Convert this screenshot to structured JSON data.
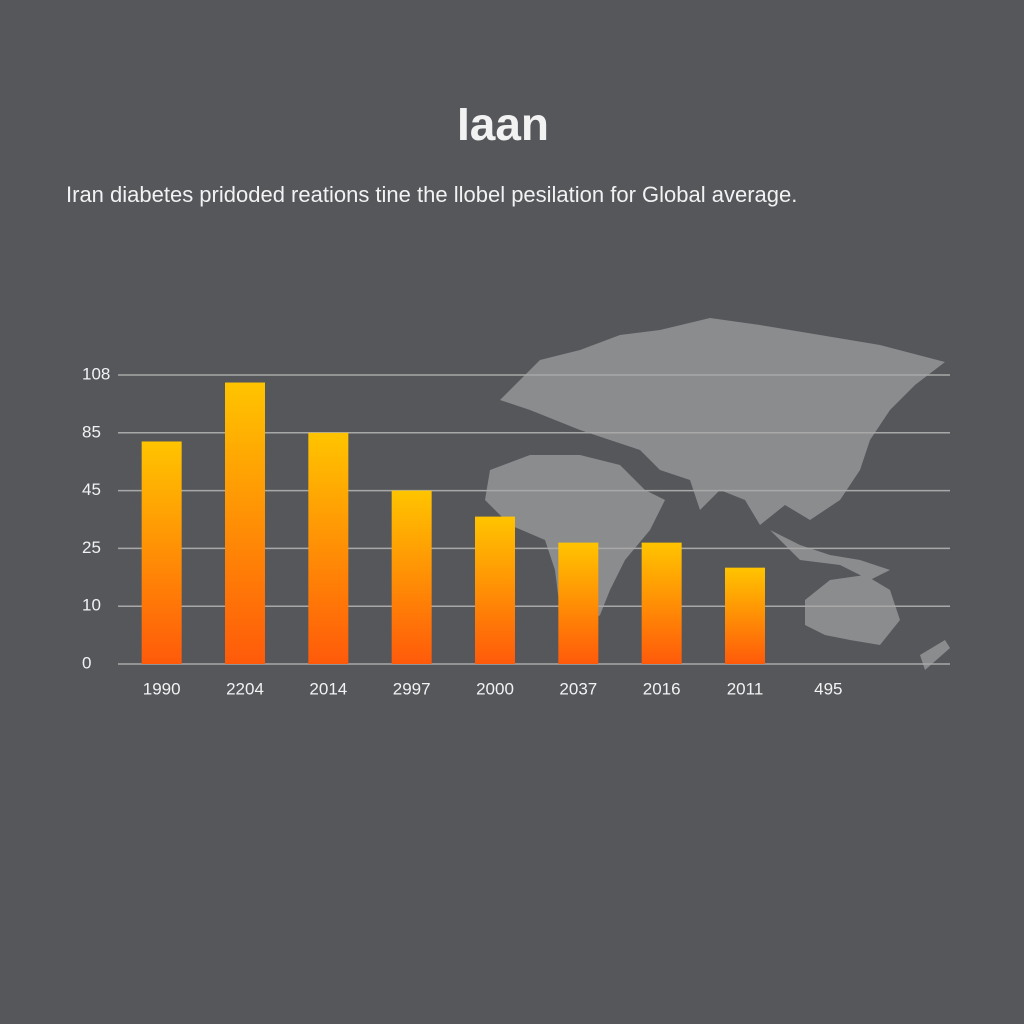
{
  "chart_data": {
    "type": "bar",
    "title": "Iaan",
    "subtitle": "Iran diabetes pridoded reations tine the llobel pesilation for Global average.",
    "categories": [
      "1990",
      "2204",
      "2014",
      "2997",
      "2000",
      "2037",
      "2016",
      "2011",
      "495"
    ],
    "values": [
      79,
      105,
      85,
      45,
      36,
      27,
      27,
      20,
      null
    ],
    "gradient": [
      "#ffc400",
      "#ff5a0a"
    ],
    "ylim": [
      0,
      108
    ],
    "yticks": [
      0,
      10,
      25,
      45,
      85,
      108
    ],
    "grid": true
  }
}
